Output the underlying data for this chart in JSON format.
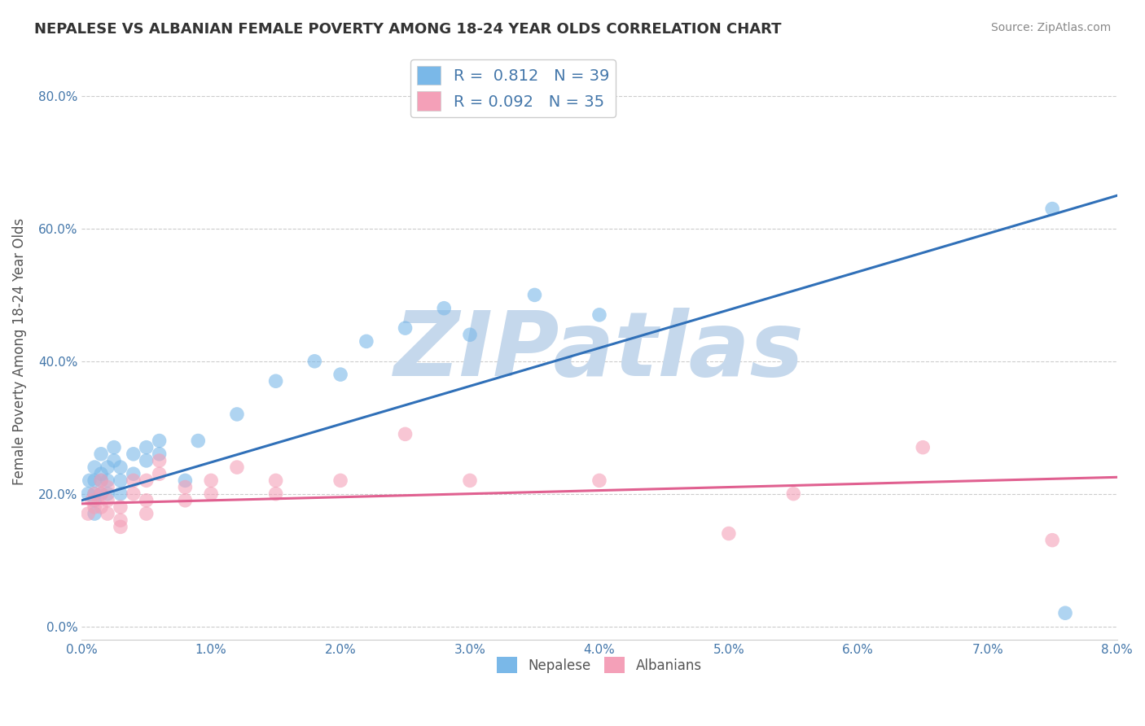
{
  "title": "NEPALESE VS ALBANIAN FEMALE POVERTY AMONG 18-24 YEAR OLDS CORRELATION CHART",
  "source": "Source: ZipAtlas.com",
  "ylabel": "Female Poverty Among 18-24 Year Olds",
  "xlim": [
    0.0,
    0.08
  ],
  "ylim": [
    -0.02,
    0.85
  ],
  "xticks": [
    0.0,
    0.01,
    0.02,
    0.03,
    0.04,
    0.05,
    0.06,
    0.07,
    0.08
  ],
  "xticklabels": [
    "0.0%",
    "1.0%",
    "2.0%",
    "3.0%",
    "4.0%",
    "5.0%",
    "6.0%",
    "7.0%",
    "8.0%"
  ],
  "yticks": [
    0.0,
    0.2,
    0.4,
    0.6,
    0.8
  ],
  "yticklabels": [
    "0.0%",
    "20.0%",
    "40.0%",
    "60.0%",
    "80.0%"
  ],
  "nepalese_R": 0.812,
  "nepalese_N": 39,
  "albanian_R": 0.092,
  "albanian_N": 35,
  "nepalese_color": "#7ab8e8",
  "albanian_color": "#f4a0b8",
  "nepalese_line_color": "#3070b8",
  "albanian_line_color": "#e06090",
  "legend_label_nepalese": "Nepalese",
  "legend_label_albanian": "Albanians",
  "watermark": "ZIPatlas",
  "watermark_color": "#c5d8ec",
  "background_color": "#ffffff",
  "grid_color": "#cccccc",
  "title_color": "#333333",
  "source_color": "#888888",
  "tick_color": "#4477aa",
  "nepalese_x": [
    0.0005,
    0.0006,
    0.001,
    0.001,
    0.001,
    0.001,
    0.001,
    0.0015,
    0.0015,
    0.0015,
    0.0015,
    0.002,
    0.002,
    0.002,
    0.0025,
    0.0025,
    0.003,
    0.003,
    0.003,
    0.004,
    0.004,
    0.005,
    0.005,
    0.006,
    0.006,
    0.008,
    0.009,
    0.012,
    0.015,
    0.018,
    0.02,
    0.022,
    0.025,
    0.028,
    0.03,
    0.035,
    0.04,
    0.075,
    0.076
  ],
  "nepalese_y": [
    0.2,
    0.22,
    0.24,
    0.22,
    0.2,
    0.19,
    0.17,
    0.23,
    0.26,
    0.22,
    0.2,
    0.22,
    0.24,
    0.2,
    0.25,
    0.27,
    0.24,
    0.22,
    0.2,
    0.26,
    0.23,
    0.27,
    0.25,
    0.28,
    0.26,
    0.22,
    0.28,
    0.32,
    0.37,
    0.4,
    0.38,
    0.43,
    0.45,
    0.48,
    0.44,
    0.5,
    0.47,
    0.63,
    0.02
  ],
  "albanian_x": [
    0.0005,
    0.0008,
    0.001,
    0.001,
    0.0015,
    0.0015,
    0.0015,
    0.002,
    0.002,
    0.002,
    0.003,
    0.003,
    0.003,
    0.004,
    0.004,
    0.005,
    0.005,
    0.005,
    0.006,
    0.006,
    0.008,
    0.008,
    0.01,
    0.01,
    0.012,
    0.015,
    0.015,
    0.02,
    0.025,
    0.03,
    0.04,
    0.05,
    0.055,
    0.065,
    0.075
  ],
  "albanian_y": [
    0.17,
    0.19,
    0.2,
    0.18,
    0.22,
    0.2,
    0.18,
    0.17,
    0.19,
    0.21,
    0.15,
    0.18,
    0.16,
    0.22,
    0.2,
    0.17,
    0.19,
    0.22,
    0.25,
    0.23,
    0.21,
    0.19,
    0.22,
    0.2,
    0.24,
    0.2,
    0.22,
    0.22,
    0.29,
    0.22,
    0.22,
    0.14,
    0.2,
    0.27,
    0.13
  ],
  "nep_line_x0": 0.0,
  "nep_line_y0": 0.19,
  "nep_line_x1": 0.08,
  "nep_line_y1": 0.65,
  "alb_line_x0": 0.0,
  "alb_line_y0": 0.185,
  "alb_line_x1": 0.08,
  "alb_line_y1": 0.225
}
